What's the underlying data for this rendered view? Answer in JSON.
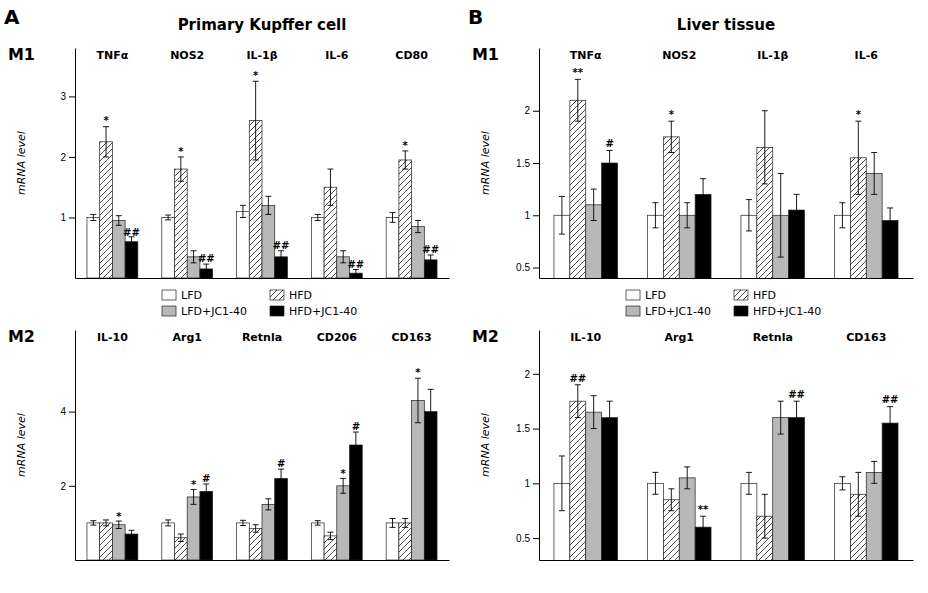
{
  "chart_data": [
    {
      "type": "bar",
      "title": "Primary Kupffer cell",
      "subtitle": "M1",
      "ylabel": "mRNA level",
      "categories": [
        "TNFα",
        "NOS2",
        "IL-1β",
        "IL-6",
        "CD80"
      ],
      "series": [
        {
          "name": "LFD",
          "color": "white",
          "values": [
            1.0,
            1.0,
            1.1,
            1.0,
            1.0
          ],
          "errors": [
            0.05,
            0.04,
            0.1,
            0.05,
            0.08
          ]
        },
        {
          "name": "HFD",
          "color": "white",
          "values": [
            2.25,
            1.8,
            2.6,
            1.5,
            1.95
          ],
          "errors": [
            0.25,
            0.2,
            0.65,
            0.3,
            0.15
          ]
        },
        {
          "name": "LFD+JC1-40",
          "color": "#b8b8b8",
          "values": [
            0.95,
            0.35,
            1.2,
            0.35,
            0.85
          ],
          "errors": [
            0.08,
            0.1,
            0.15,
            0.1,
            0.1
          ]
        },
        {
          "name": "HFD+JC1-40",
          "color": "black",
          "values": [
            0.6,
            0.15,
            0.35,
            0.08,
            0.3
          ],
          "errors": [
            0.08,
            0.08,
            0.1,
            0.06,
            0.08
          ]
        }
      ],
      "ylim": [
        0,
        3.8
      ],
      "yticks": [
        1,
        2,
        3
      ],
      "legend": "bottom",
      "annotations": [
        {
          "text": "*",
          "category": "TNFα",
          "series": "HFD",
          "y": 2.52
        },
        {
          "text": "##",
          "category": "TNFα",
          "series": "HFD+JC1-40",
          "y": 0.68
        },
        {
          "text": "*",
          "category": "NOS2",
          "series": "HFD",
          "y": 2.02
        },
        {
          "text": "##",
          "category": "NOS2",
          "series": "HFD+JC1-40",
          "y": 0.24
        },
        {
          "text": "*",
          "category": "IL-1β",
          "series": "HFD",
          "y": 3.27
        },
        {
          "text": "##",
          "category": "IL-1β",
          "series": "HFD+JC1-40",
          "y": 0.46
        },
        {
          "text": "##",
          "category": "IL-6",
          "series": "HFD+JC1-40",
          "y": 0.15
        },
        {
          "text": "*",
          "category": "CD80",
          "series": "HFD",
          "y": 2.12
        },
        {
          "text": "##",
          "category": "CD80",
          "series": "HFD+JC1-40",
          "y": 0.39
        },
        {
          "text": "A"
        }
      ]
    },
    {
      "type": "bar",
      "subtitle": "M2",
      "ylabel": "mRNA level",
      "categories": [
        "IL-10",
        "Arg1",
        "Retnla",
        "CD206",
        "CD163"
      ],
      "series": [
        {
          "name": "LFD",
          "color": "white",
          "values": [
            1.0,
            1.0,
            1.0,
            1.0,
            1.0
          ],
          "errors": [
            0.06,
            0.08,
            0.07,
            0.06,
            0.12
          ]
        },
        {
          "name": "HFD",
          "color": "white",
          "values": [
            1.0,
            0.6,
            0.85,
            0.65,
            1.0
          ],
          "errors": [
            0.08,
            0.1,
            0.1,
            0.1,
            0.12
          ]
        },
        {
          "name": "LFD+JC1-40",
          "color": "#b8b8b8",
          "values": [
            0.95,
            1.7,
            1.5,
            2.0,
            4.3
          ],
          "errors": [
            0.1,
            0.2,
            0.15,
            0.2,
            0.6
          ]
        },
        {
          "name": "HFD+JC1-40",
          "color": "black",
          "values": [
            0.7,
            1.85,
            2.2,
            3.1,
            4.0
          ],
          "errors": [
            0.1,
            0.2,
            0.25,
            0.35,
            0.6
          ]
        }
      ],
      "ylim": [
        0,
        6.2
      ],
      "yticks": [
        2,
        4
      ],
      "annotations": [
        {
          "text": "*",
          "category": "IL-10",
          "series": "LFD+JC1-40",
          "y": 1.06
        },
        {
          "text": "*",
          "category": "Arg1",
          "series": "LFD+JC1-40",
          "y": 1.92
        },
        {
          "text": "#",
          "category": "Arg1",
          "series": "HFD+JC1-40",
          "y": 2.07
        },
        {
          "text": "#",
          "category": "Retnla",
          "series": "HFD+JC1-40",
          "y": 2.47
        },
        {
          "text": "*",
          "category": "CD206",
          "series": "LFD+JC1-40",
          "y": 2.22
        },
        {
          "text": "#",
          "category": "CD206",
          "series": "HFD+JC1-40",
          "y": 3.47
        },
        {
          "text": "*",
          "category": "CD163",
          "series": "LFD+JC1-40",
          "y": 4.92
        }
      ]
    },
    {
      "type": "bar",
      "title": "Liver tissue",
      "subtitle": "M1",
      "ylabel": "mRNA level",
      "categories": [
        "TNFα",
        "NOS2",
        "IL-1β",
        "IL-6"
      ],
      "series": [
        {
          "name": "LFD",
          "color": "white",
          "values": [
            1.0,
            1.0,
            1.0,
            1.0
          ],
          "errors": [
            0.18,
            0.12,
            0.15,
            0.12
          ]
        },
        {
          "name": "HFD",
          "color": "white",
          "values": [
            2.1,
            1.75,
            1.65,
            1.55
          ],
          "errors": [
            0.2,
            0.15,
            0.35,
            0.35
          ]
        },
        {
          "name": "LFD+JC1-40",
          "color": "#b8b8b8",
          "values": [
            1.1,
            1.0,
            1.0,
            1.4
          ],
          "errors": [
            0.15,
            0.12,
            0.4,
            0.2
          ]
        },
        {
          "name": "HFD+JC1-40",
          "color": "black",
          "values": [
            1.5,
            1.2,
            1.05,
            0.95
          ],
          "errors": [
            0.12,
            0.15,
            0.15,
            0.12
          ]
        }
      ],
      "ylim": [
        0.4,
        2.6
      ],
      "yticks": [
        0.5,
        1,
        1.5,
        2
      ],
      "legend": "bottom",
      "annotations": [
        {
          "text": "**",
          "category": "TNFα",
          "series": "HFD",
          "y": 2.32
        },
        {
          "text": "#",
          "category": "TNFα",
          "series": "HFD+JC1-40",
          "y": 1.64
        },
        {
          "text": "*",
          "category": "NOS2",
          "series": "HFD",
          "y": 1.92
        },
        {
          "text": "*",
          "category": "IL-6",
          "series": "HFD",
          "y": 1.92
        },
        {
          "text": "B"
        }
      ]
    },
    {
      "type": "bar",
      "subtitle": "M2",
      "ylabel": "mRNA level",
      "categories": [
        "IL-10",
        "Arg1",
        "Retnla",
        "CD163"
      ],
      "series": [
        {
          "name": "LFD",
          "color": "white",
          "values": [
            1.0,
            1.0,
            1.0,
            1.0
          ],
          "errors": [
            0.25,
            0.1,
            0.1,
            0.06
          ]
        },
        {
          "name": "HFD",
          "color": "white",
          "values": [
            1.75,
            0.85,
            0.7,
            0.9
          ],
          "errors": [
            0.15,
            0.1,
            0.2,
            0.2
          ]
        },
        {
          "name": "LFD+JC1-40",
          "color": "#b8b8b8",
          "values": [
            1.65,
            1.05,
            1.6,
            1.1
          ],
          "errors": [
            0.15,
            0.1,
            0.15,
            0.1
          ]
        },
        {
          "name": "HFD+JC1-40",
          "color": "black",
          "values": [
            1.6,
            0.6,
            1.6,
            1.55
          ],
          "errors": [
            0.15,
            0.1,
            0.15,
            0.15
          ]
        }
      ],
      "ylim": [
        0.3,
        2.4
      ],
      "yticks": [
        0.5,
        1,
        1.5,
        2
      ],
      "annotations": [
        {
          "text": "##",
          "category": "IL-10",
          "series": "HFD",
          "y": 1.92
        },
        {
          "text": "**",
          "category": "Arg1",
          "series": "HFD+JC1-40",
          "y": 0.72
        },
        {
          "text": "##",
          "category": "Retnla",
          "series": "HFD+JC1-40",
          "y": 1.77
        },
        {
          "text": "##",
          "category": "CD163",
          "series": "HFD+JC1-40",
          "y": 1.72
        }
      ]
    }
  ]
}
